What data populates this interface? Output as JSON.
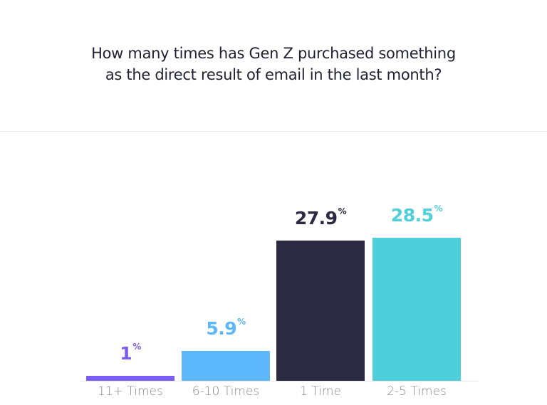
{
  "chart_data": {
    "type": "bar",
    "title": "How many times has Gen Z purchased something as the direct result of email in the last month?",
    "title_lines": [
      "How many times has Gen Z purchased something",
      "as the direct result of email in the last month?"
    ],
    "categories": [
      "11+ Times",
      "6-10 Times",
      "1 Time",
      "2-5 Times"
    ],
    "values": [
      1,
      5.9,
      27.9,
      28.5
    ],
    "value_labels": [
      "1",
      "5.9",
      "27.9",
      "28.5"
    ],
    "unit": "%",
    "colors": [
      "#7b5cf5",
      "#5cb8fb",
      "#2b2a42",
      "#4fcfda"
    ],
    "xlabel": "",
    "ylabel": "",
    "ylim": [
      0,
      30
    ],
    "grid": false,
    "legend": "none"
  }
}
